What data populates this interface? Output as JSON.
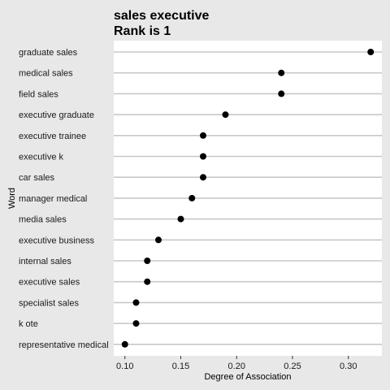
{
  "chart_data": {
    "type": "scatter",
    "title": "sales executive",
    "subtitle": "Rank is 1",
    "xlabel": "Degree of Association",
    "ylabel": "Word",
    "xlim": [
      0.09,
      0.33
    ],
    "xticks": [
      0.1,
      0.15,
      0.2,
      0.25,
      0.3
    ],
    "xtick_labels": [
      "0.10",
      "0.15",
      "0.20",
      "0.25",
      "0.30"
    ],
    "grid": true,
    "legend": "none",
    "points": [
      {
        "word": "graduate sales",
        "value": 0.32
      },
      {
        "word": "medical sales",
        "value": 0.24
      },
      {
        "word": "field sales",
        "value": 0.24
      },
      {
        "word": "executive graduate",
        "value": 0.19
      },
      {
        "word": "executive trainee",
        "value": 0.17
      },
      {
        "word": "executive k",
        "value": 0.17
      },
      {
        "word": "car sales",
        "value": 0.17
      },
      {
        "word": "manager medical",
        "value": 0.16
      },
      {
        "word": "media sales",
        "value": 0.15
      },
      {
        "word": "executive business",
        "value": 0.13
      },
      {
        "word": "internal sales",
        "value": 0.12
      },
      {
        "word": "executive sales",
        "value": 0.12
      },
      {
        "word": "specialist sales",
        "value": 0.11
      },
      {
        "word": "k ote",
        "value": 0.11
      },
      {
        "word": "representative medical",
        "value": 0.1
      }
    ]
  },
  "colors": {
    "page_background": "#e8e8e8",
    "panel_background": "#ffffff",
    "grid": "#c8c8c8",
    "point": "#000000"
  }
}
